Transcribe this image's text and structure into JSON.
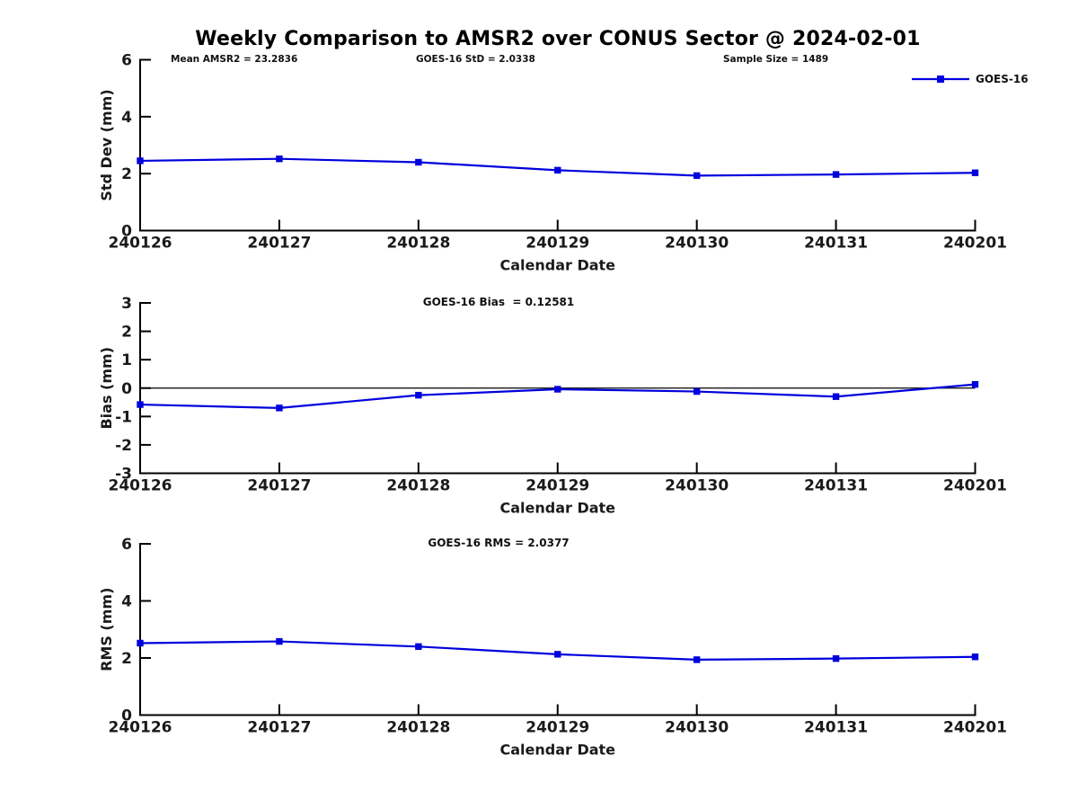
{
  "title": "Weekly Comparison to AMSR2 over CONUS Sector @ 2024-02-01",
  "header_annotations": [
    {
      "text": "Mean AMSR2 = 23.2836"
    },
    {
      "text": "GOES-16 StD = 2.0338"
    },
    {
      "text": "Sample Size = 1489"
    }
  ],
  "legend": {
    "label": "GOES-16",
    "marker": "filled-square",
    "color": "#0000dd",
    "position": "top-right"
  },
  "colors": {
    "series": "#0000dd",
    "axis": "#000000",
    "tick_text": "#1a1a1a",
    "background": "#ffffff"
  },
  "chart_data": [
    {
      "type": "line",
      "name": "std-dev-panel",
      "categories": [
        "240126",
        "240127",
        "240128",
        "240129",
        "240130",
        "240131",
        "240201"
      ],
      "series": [
        {
          "name": "GOES-16",
          "values": [
            2.45,
            2.52,
            2.4,
            2.12,
            1.93,
            1.97,
            2.03
          ]
        }
      ],
      "ylabel": "Std Dev (mm)",
      "xlabel": "Calendar Date",
      "ylim": [
        0,
        6
      ],
      "yticks": [
        0,
        2,
        4,
        6
      ],
      "zero_line": false,
      "grid": false,
      "annotation": ""
    },
    {
      "type": "line",
      "name": "bias-panel",
      "categories": [
        "240126",
        "240127",
        "240128",
        "240129",
        "240130",
        "240131",
        "240201"
      ],
      "series": [
        {
          "name": "GOES-16",
          "values": [
            -0.58,
            -0.7,
            -0.25,
            -0.04,
            -0.12,
            -0.3,
            0.13
          ]
        }
      ],
      "ylabel": "Bias (mm)",
      "xlabel": "Calendar Date",
      "ylim": [
        -3,
        3
      ],
      "yticks": [
        -3,
        -2,
        -1,
        0,
        1,
        2,
        3
      ],
      "zero_line": true,
      "grid": false,
      "annotation": "GOES-16 Bias  = 0.12581"
    },
    {
      "type": "line",
      "name": "rms-panel",
      "categories": [
        "240126",
        "240127",
        "240128",
        "240129",
        "240130",
        "240131",
        "240201"
      ],
      "series": [
        {
          "name": "GOES-16",
          "values": [
            2.52,
            2.58,
            2.4,
            2.13,
            1.94,
            1.98,
            2.04
          ]
        }
      ],
      "ylabel": "RMS (mm)",
      "xlabel": "Calendar Date",
      "ylim": [
        0,
        6
      ],
      "yticks": [
        0,
        2,
        4,
        6
      ],
      "zero_line": false,
      "grid": false,
      "annotation": "GOES-16 RMS = 2.0377"
    }
  ]
}
